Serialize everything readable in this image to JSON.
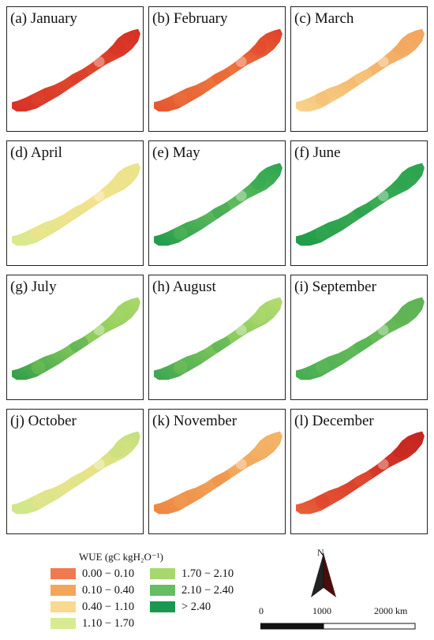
{
  "panels": [
    {
      "label": "(a) January",
      "colors": [
        "#d73027",
        "#e04a2e",
        "#d62f24"
      ]
    },
    {
      "label": "(b) February",
      "colors": [
        "#e5552f",
        "#ef7a3e",
        "#df3f2a"
      ]
    },
    {
      "label": "(c) March",
      "colors": [
        "#f7d38a",
        "#f4b76d",
        "#f3a45c"
      ]
    },
    {
      "label": "(d) April",
      "colors": [
        "#d6ea8d",
        "#f7e08e",
        "#e8e48a"
      ]
    },
    {
      "label": "(e) May",
      "colors": [
        "#1e9a4a",
        "#67bd5e",
        "#2aa550"
      ]
    },
    {
      "label": "(f) June",
      "colors": [
        "#1f9a49",
        "#3cac55",
        "#2ba34f"
      ]
    },
    {
      "label": "(g) July",
      "colors": [
        "#2f9d4a",
        "#8bcb5b",
        "#a9d86a"
      ]
    },
    {
      "label": "(h) August",
      "colors": [
        "#3aa551",
        "#86c95b",
        "#b5dc72"
      ]
    },
    {
      "label": "(i) September",
      "colors": [
        "#45ad54",
        "#69bc58",
        "#5cb355"
      ]
    },
    {
      "label": "(j) October",
      "colors": [
        "#cde68a",
        "#eee38a",
        "#c3e07c"
      ]
    },
    {
      "label": "(k) November",
      "colors": [
        "#ee8541",
        "#f2a55a",
        "#f3b56a"
      ]
    },
    {
      "label": "(l) December",
      "colors": [
        "#e8603a",
        "#d93a29",
        "#c3241f"
      ]
    }
  ],
  "legend": {
    "title": "WUE (gC kgH₂O⁻¹)",
    "items": [
      {
        "label": "0.00 − 0.10",
        "color": "#f07a50"
      },
      {
        "label": "0.10 − 0.40",
        "color": "#f3a55a"
      },
      {
        "label": "0.40 − 1.10",
        "color": "#f9d98e"
      },
      {
        "label": "1.10 − 1.70",
        "color": "#d7ec92"
      },
      {
        "label": "1.70 − 2.10",
        "color": "#a6d86f"
      },
      {
        "label": "2.10 − 2.40",
        "color": "#66bd63"
      },
      {
        "label": "> 2.40",
        "color": "#1a9850"
      }
    ]
  },
  "north_arrow": {
    "letter": "N",
    "icon": "north-arrow-icon"
  },
  "scale_bar": {
    "ticks": [
      "0",
      "1000",
      "2000 km"
    ]
  }
}
